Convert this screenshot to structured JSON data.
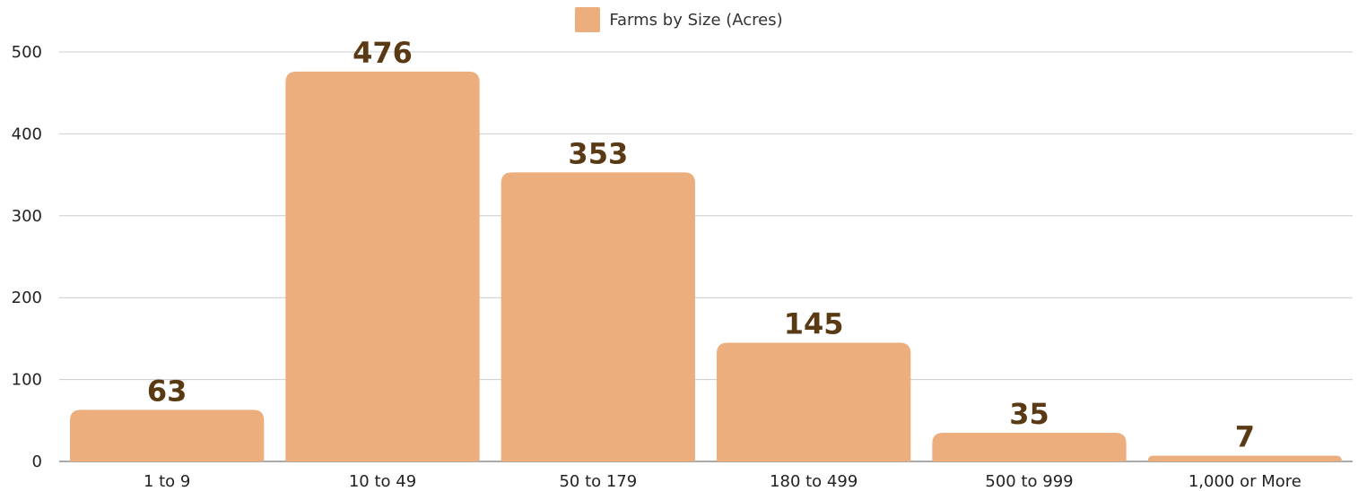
{
  "chart_data": {
    "type": "bar",
    "categories": [
      "1 to 9",
      "10 to 49",
      "50 to 179",
      "180 to 499",
      "500 to 999",
      "1,000 or More"
    ],
    "series": [
      {
        "name": "Farms by Size (Acres)",
        "values": [
          63,
          476,
          353,
          145,
          35,
          7
        ],
        "color": "#edae7e"
      }
    ],
    "ylim": [
      0,
      500
    ],
    "yticks": [
      "0",
      "100",
      "200",
      "300",
      "400",
      "500"
    ],
    "data_labels": [
      "63",
      "476",
      "353",
      "145",
      "35",
      "7"
    ],
    "legend_position": "top-center",
    "grid": true,
    "colors": {
      "bar": "#edae7e",
      "data_label": "#5a3a14",
      "grid": "#cccccc",
      "axis": "#555555"
    }
  }
}
